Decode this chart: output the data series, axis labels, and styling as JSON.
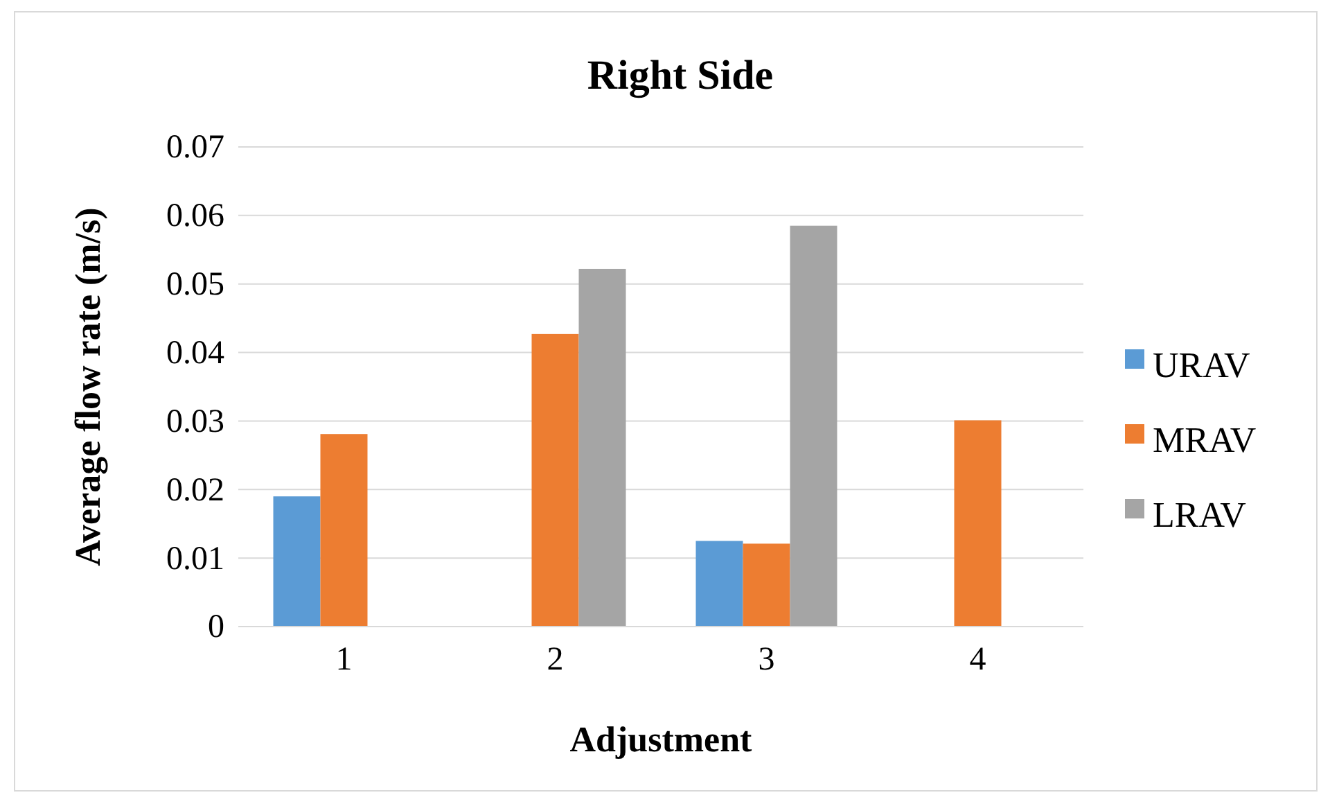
{
  "chart_data": {
    "type": "bar",
    "title": "Right Side",
    "xlabel": "Adjustment",
    "ylabel": "Average flow rate (m/s)",
    "categories": [
      "1",
      "2",
      "3",
      "4"
    ],
    "series": [
      {
        "name": "URAV",
        "color": "#5b9bd5",
        "values": [
          0.019,
          null,
          0.0125,
          null
        ]
      },
      {
        "name": "MRAV",
        "color": "#ed7d31",
        "values": [
          0.0281,
          0.0427,
          0.0121,
          0.0301
        ]
      },
      {
        "name": "LRAV",
        "color": "#a5a5a5",
        "values": [
          null,
          0.0522,
          0.0585,
          null
        ]
      }
    ],
    "ylim": [
      0,
      0.07
    ],
    "yticks": [
      {
        "value": 0,
        "label": "0"
      },
      0.01,
      0.02,
      0.03,
      0.04,
      0.05,
      0.06,
      0.07
    ],
    "grid": "y",
    "legend": "right"
  }
}
